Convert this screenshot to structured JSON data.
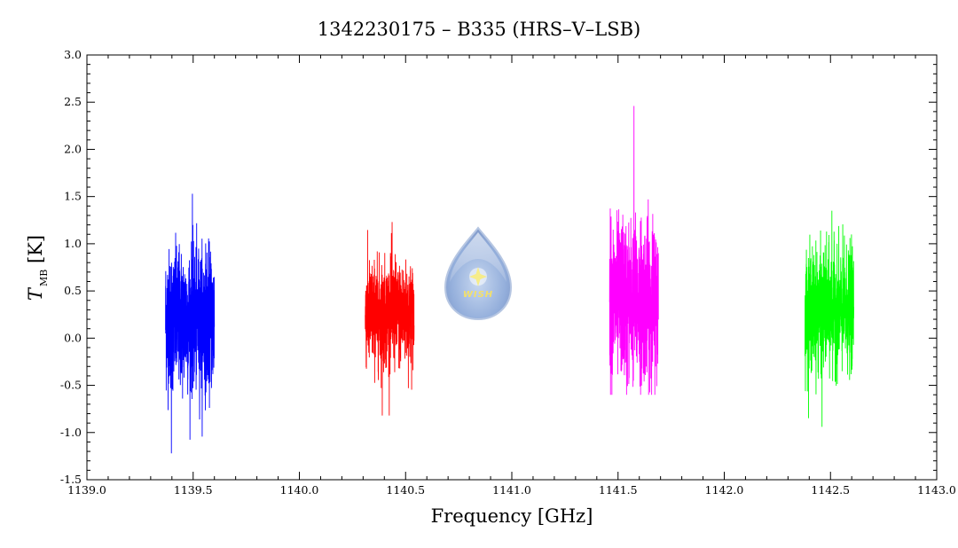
{
  "chart_data": {
    "type": "line",
    "title": "1342230175 – B335 (HRS–V–LSB)",
    "xlabel": "Frequency [GHz]",
    "ylabel_main": "T",
    "ylabel_sub": "MB",
    "ylabel_unit": " [K]",
    "xlim": [
      1139.0,
      1143.0
    ],
    "ylim": [
      -1.5,
      3.0
    ],
    "x_ticks": [
      "1139.0",
      "1139.5",
      "1140.0",
      "1140.5",
      "1141.0",
      "1141.5",
      "1142.0",
      "1142.5",
      "1143.0"
    ],
    "y_ticks": [
      "-1.5",
      "-1.0",
      "-0.5",
      "0.0",
      "0.5",
      "1.0",
      "1.5",
      "2.0",
      "2.5",
      "3.0"
    ],
    "grid": false,
    "series": [
      {
        "color": "#0000ff",
        "x_range": [
          1139.37,
          1139.6
        ],
        "center": 0.2,
        "low": -1.22,
        "high": 1.53
      },
      {
        "color": "#ff0000",
        "x_range": [
          1140.31,
          1140.54
        ],
        "center": 0.25,
        "low": -0.82,
        "high": 1.23
      },
      {
        "color": "#ff00ff",
        "x_range": [
          1141.46,
          1141.69
        ],
        "center": 0.4,
        "low": -0.6,
        "high": 2.46
      },
      {
        "color": "#00ff00",
        "x_range": [
          1142.38,
          1142.61
        ],
        "center": 0.3,
        "low": -0.94,
        "high": 1.35
      }
    ]
  },
  "logo": {
    "text": "WISH",
    "icon": "water-drop-star-icon"
  }
}
